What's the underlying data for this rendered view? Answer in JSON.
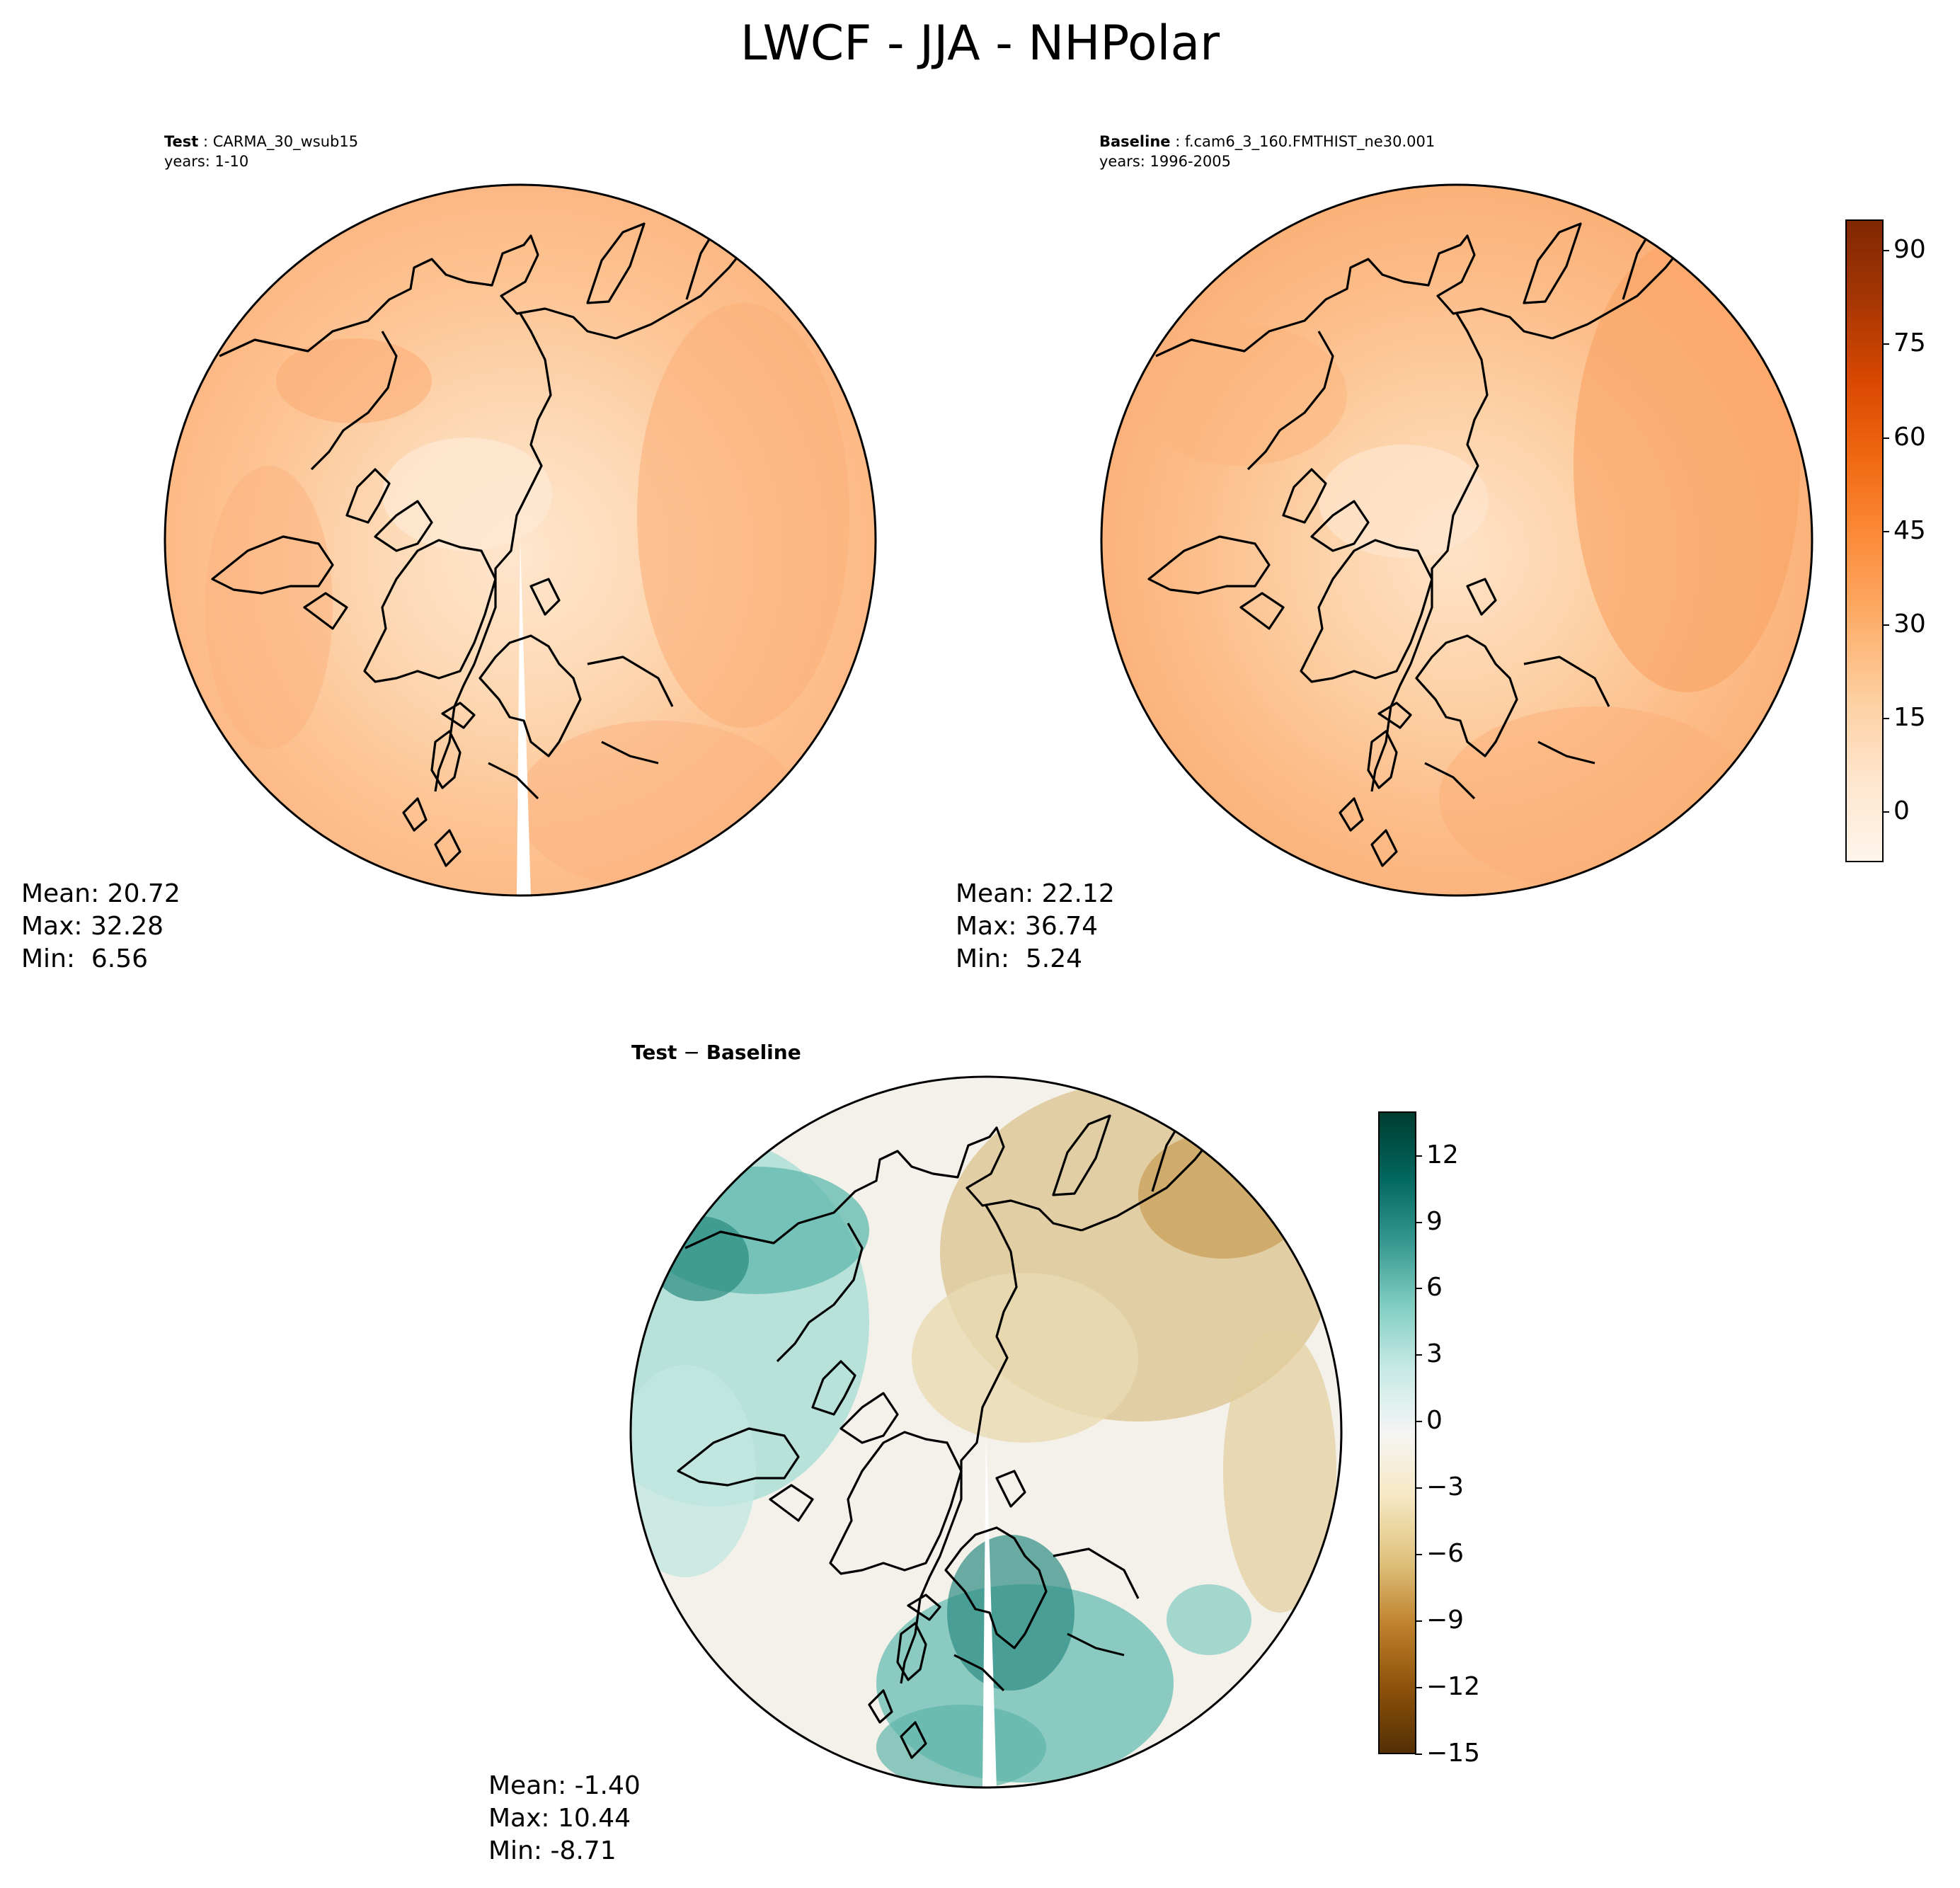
{
  "title": "LWCF - JJA - NHPolar",
  "test_panel": {
    "label": "Test",
    "case": "CARMA_30_wsub15",
    "years": "years: 1-10",
    "stats": {
      "mean": "Mean: 20.72",
      "max": "Max: 32.28",
      "min": "Min:  6.56"
    }
  },
  "baseline_panel": {
    "label": "Baseline",
    "case": "f.cam6_3_160.FMTHIST_ne30.001",
    "years": "years: 1996-2005",
    "stats": {
      "mean": "Mean: 22.12",
      "max": "Max: 36.74",
      "min": "Min:  5.24"
    }
  },
  "diff_panel": {
    "label_a": "Test",
    "separator": " − ",
    "label_b": "Baseline",
    "stats": {
      "mean": "Mean: -1.40",
      "max": "Max: 10.44",
      "min": "Min: -8.71"
    }
  },
  "colorbar_main": {
    "colormap": "Oranges",
    "range": [
      -8,
      95
    ],
    "ticks": [
      "90",
      "75",
      "60",
      "45",
      "30",
      "15",
      "0"
    ],
    "tick_values": [
      90,
      75,
      60,
      45,
      30,
      15,
      0
    ],
    "colors": [
      "#fff5eb",
      "#fee6ce",
      "#fdd0a2",
      "#fdae6b",
      "#fd8d3c",
      "#f16913",
      "#d94801",
      "#a63603",
      "#7f2704"
    ]
  },
  "colorbar_diff": {
    "colormap": "BrBG",
    "range": [
      -15,
      14
    ],
    "ticks": [
      "12",
      "9",
      "6",
      "3",
      "0",
      "−3",
      "−6",
      "−9",
      "−12",
      "−15"
    ],
    "tick_values": [
      12,
      9,
      6,
      3,
      0,
      -3,
      -6,
      -9,
      -12,
      -15
    ],
    "colors": [
      "#543005",
      "#8c510a",
      "#bf812d",
      "#dfc27d",
      "#f6e8c3",
      "#f5f5f5",
      "#c7eae5",
      "#80cdc1",
      "#35978f",
      "#01665e",
      "#003c30"
    ]
  }
}
